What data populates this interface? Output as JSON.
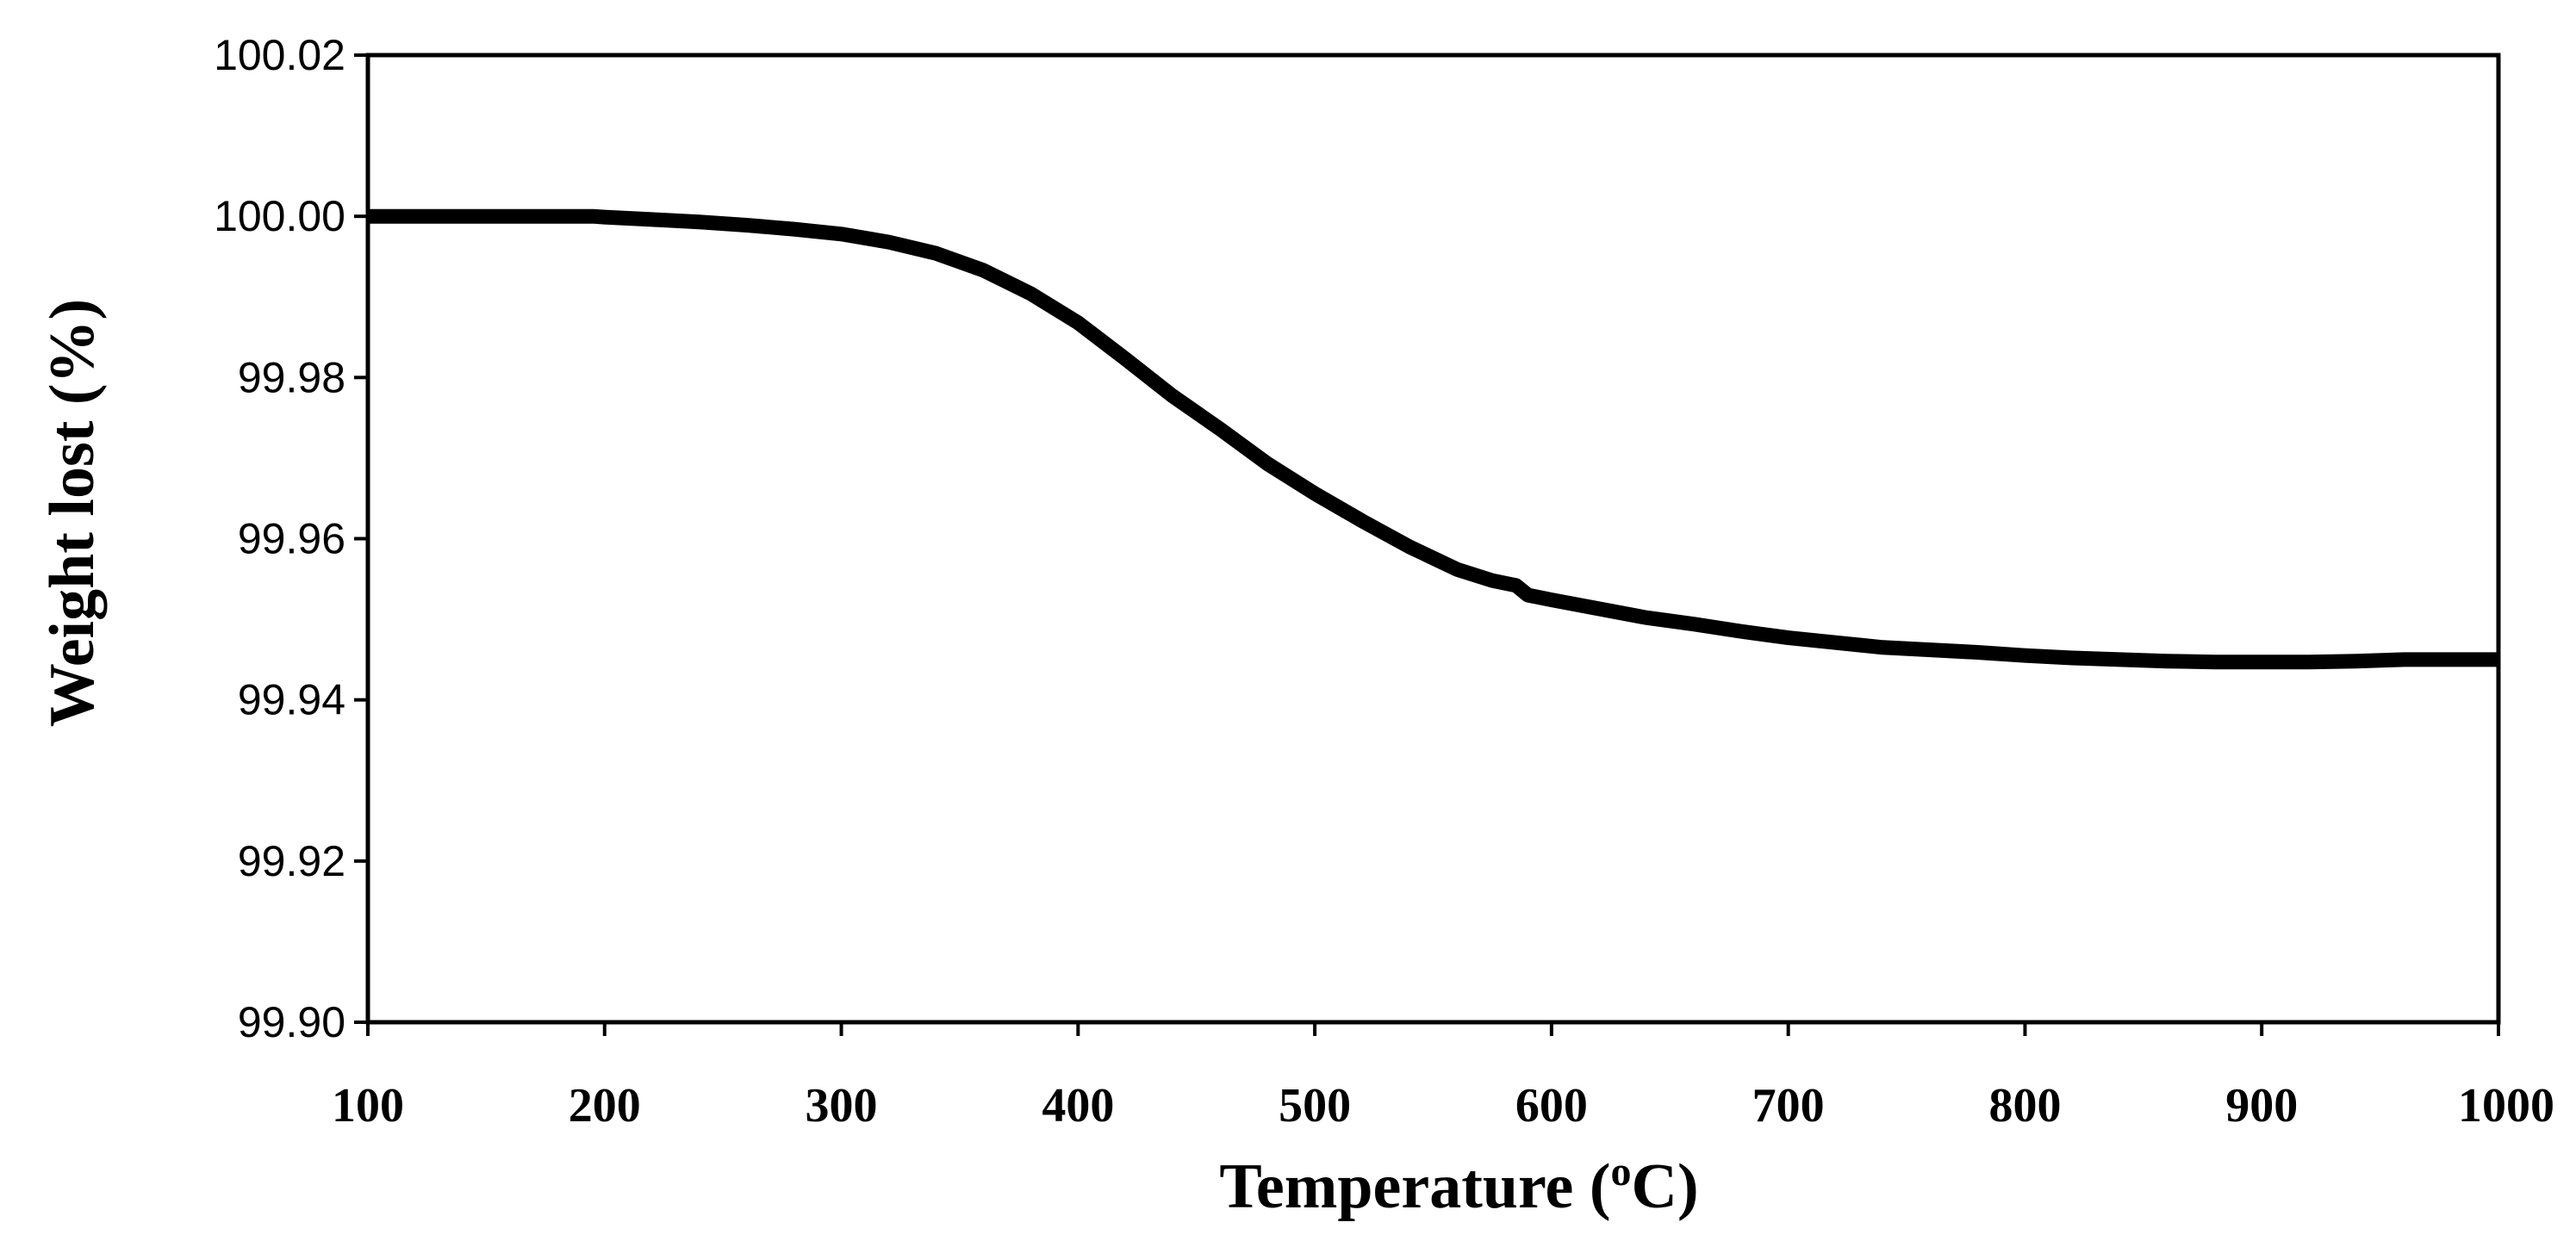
{
  "chart_data": {
    "type": "line",
    "title": "",
    "xlabel": "Temperature (oC)",
    "xlabel_main": "Temperature (",
    "xlabel_sup": "o",
    "xlabel_end": "C)",
    "ylabel": "Weight lost (%)",
    "xlim": [
      100,
      1000
    ],
    "ylim": [
      99.9,
      100.02
    ],
    "x_ticks": [
      100,
      200,
      300,
      400,
      500,
      600,
      700,
      800,
      900,
      1000
    ],
    "x_tick_labels": [
      "100",
      "200",
      "300",
      "400",
      "500",
      "600",
      "700",
      "800",
      "900",
      "1000"
    ],
    "y_ticks": [
      99.9,
      99.92,
      99.94,
      99.96,
      99.98,
      100.0,
      100.02
    ],
    "y_tick_labels": [
      "99.90",
      "99.92",
      "99.94",
      "99.96",
      "99.98",
      "100.00",
      "100.02"
    ],
    "grid": false,
    "line_color": "#000000",
    "series": [
      {
        "name": "Weight lost",
        "x": [
          100,
          150,
          195,
          200,
          220,
          240,
          260,
          280,
          300,
          320,
          340,
          360,
          380,
          400,
          420,
          440,
          460,
          480,
          500,
          520,
          540,
          560,
          575,
          585,
          590,
          600,
          620,
          640,
          660,
          680,
          700,
          720,
          740,
          760,
          780,
          800,
          820,
          840,
          860,
          880,
          900,
          920,
          940,
          960,
          980,
          1000
        ],
        "y": [
          100.0,
          100.0,
          100.0,
          99.9999,
          99.9996,
          99.9993,
          99.9989,
          99.9984,
          99.9978,
          99.9968,
          99.9954,
          99.9933,
          99.9904,
          99.9868,
          99.9823,
          99.9777,
          99.9736,
          99.9693,
          99.9656,
          99.9622,
          99.959,
          99.9562,
          99.9548,
          99.9542,
          99.953,
          99.9524,
          99.9513,
          99.9502,
          99.9494,
          99.9485,
          99.9477,
          99.9471,
          99.9465,
          99.9462,
          99.9459,
          99.9455,
          99.9452,
          99.945,
          99.9448,
          99.9447,
          99.9447,
          99.9447,
          99.9448,
          99.945,
          99.945,
          99.945
        ]
      }
    ]
  }
}
